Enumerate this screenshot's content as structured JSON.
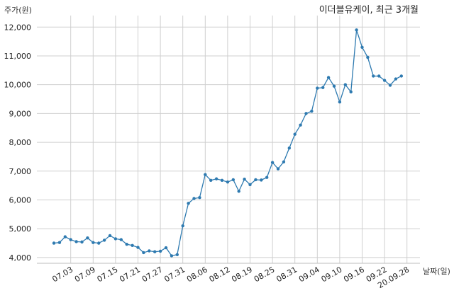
{
  "chart_data": {
    "type": "line",
    "title": "이더블유케이, 최근 3개월",
    "ylabel": "주가(원)",
    "xlabel": "날짜(일)",
    "ylim": [
      3800,
      12400
    ],
    "yticks": [
      4000,
      5000,
      6000,
      7000,
      8000,
      9000,
      10000,
      11000,
      12000
    ],
    "ytick_labels": [
      "4,000",
      "5,000",
      "6,000",
      "7,000",
      "8,000",
      "9,000",
      "10,000",
      "11,000",
      "12,000"
    ],
    "xtick_labels": [
      "07.03",
      "07.09",
      "07.15",
      "07.21",
      "07.27",
      "07.31",
      "08.06",
      "08.12",
      "08.19",
      "08.25",
      "08.31",
      "09.04",
      "09.10",
      "09.16",
      "09.22",
      "20.09.28"
    ],
    "xtick_index": [
      3,
      7,
      11,
      15,
      19,
      23,
      27,
      31,
      35,
      39,
      43,
      47,
      51,
      55,
      59,
      63
    ],
    "grid": true,
    "color": "#2e7ab0",
    "series": [
      {
        "values": [
          4500,
          4520,
          4720,
          4620,
          4550,
          4540,
          4680,
          4520,
          4500,
          4600,
          4760,
          4650,
          4620,
          4460,
          4420,
          4350,
          4170,
          4230,
          4200,
          4220,
          4340,
          4060,
          4100,
          5100,
          5880,
          6050,
          6080,
          6880,
          6680,
          6730,
          6680,
          6620,
          6700,
          6300,
          6720,
          6530,
          6700,
          6690,
          6780,
          7300,
          7080,
          7320,
          7800,
          8280,
          8600,
          9000,
          9080,
          9880,
          9900,
          10250,
          9950,
          9400,
          10000,
          9750,
          11900,
          11300,
          10950,
          10300,
          10300,
          10150,
          9980,
          10200,
          10300
        ]
      }
    ]
  }
}
